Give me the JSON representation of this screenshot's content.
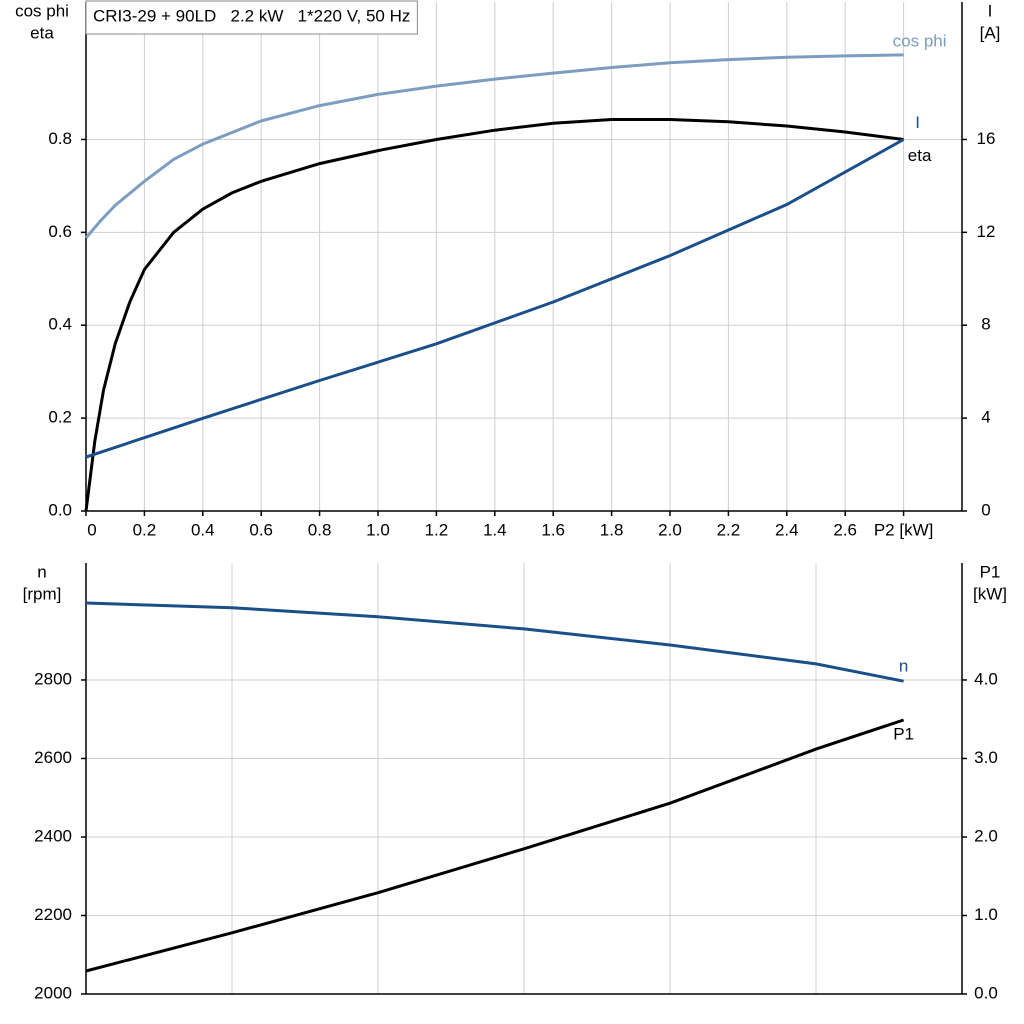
{
  "chart_data": [
    {
      "type": "line",
      "title": "CRI3-29 + 90LD   2.2 kW   1*220 V, 50 Hz",
      "y_label": [
        "cos phi",
        "eta"
      ],
      "y2_label": [
        "I",
        "[A]"
      ],
      "xlim": [
        0,
        3.0
      ],
      "ylim": [
        0,
        1.096
      ],
      "y2lim": [
        0,
        21.92
      ],
      "grid": true,
      "xticks": [
        0,
        0.2,
        0.4,
        0.6,
        0.8,
        {
          "value": 1.0,
          "label": "1.0"
        },
        1.2,
        1.4,
        1.6,
        1.8,
        {
          "value": 2.0,
          "label": "2.0"
        },
        2.2,
        2.4,
        2.6,
        {
          "value": 2.8,
          "label": "P2 [kW]"
        }
      ],
      "yticks": [
        {
          "value": 0,
          "label": "0.0"
        },
        0.2,
        0.4,
        0.6,
        0.8
      ],
      "y2ticks": [
        0,
        4,
        8,
        12,
        16
      ],
      "series": [
        {
          "name": "cos phi",
          "color": "#7c9dbf",
          "x": [
            0,
            0.05,
            0.1,
            0.2,
            0.3,
            0.4,
            0.6,
            0.8,
            1.0,
            1.2,
            1.4,
            1.6,
            1.8,
            2.0,
            2.2,
            2.4,
            2.6,
            2.8
          ],
          "values": [
            0.588,
            0.625,
            0.658,
            0.71,
            0.757,
            0.79,
            0.84,
            0.873,
            0.897,
            0.915,
            0.93,
            0.943,
            0.955,
            0.965,
            0.972,
            0.977,
            0.98,
            0.982
          ]
        },
        {
          "name": "eta",
          "color": "#000000",
          "x": [
            0,
            0.03,
            0.06,
            0.1,
            0.15,
            0.2,
            0.3,
            0.4,
            0.5,
            0.6,
            0.8,
            1.0,
            1.2,
            1.4,
            1.6,
            1.8,
            2.0,
            2.2,
            2.4,
            2.6,
            2.8
          ],
          "values": [
            0,
            0.15,
            0.26,
            0.36,
            0.45,
            0.52,
            0.6,
            0.65,
            0.685,
            0.71,
            0.748,
            0.776,
            0.8,
            0.82,
            0.835,
            0.843,
            0.843,
            0.838,
            0.829,
            0.816,
            0.8
          ]
        },
        {
          "name": "I",
          "color": "#1a4f8a",
          "axis": "y2",
          "x": [
            0,
            0.4,
            0.8,
            1.2,
            1.6,
            2.0,
            2.4,
            2.8
          ],
          "values": [
            2.32,
            3.99,
            5.62,
            7.2,
            9.0,
            11.0,
            13.2,
            16.0
          ]
        }
      ]
    },
    {
      "type": "line",
      "y_label": [
        "n",
        "[rpm]"
      ],
      "y2_label": [
        "P1",
        "[kW]"
      ],
      "xlim": [
        0,
        3.0
      ],
      "ylim": [
        2000,
        3098
      ],
      "y2lim": [
        0,
        5.49
      ],
      "grid": true,
      "xgrid": [
        0.5,
        1.0,
        1.5,
        2.0,
        2.5
      ],
      "yticks": [
        2000,
        2200,
        2400,
        2600,
        2800
      ],
      "y2ticks": [
        {
          "value": 0,
          "label": "0.0"
        },
        {
          "value": 1,
          "label": "1.0"
        },
        {
          "value": 2,
          "label": "2.0"
        },
        {
          "value": 3,
          "label": "3.0"
        },
        {
          "value": 4,
          "label": "4.0"
        }
      ],
      "series": [
        {
          "name": "n",
          "color": "#1a4f8a",
          "x": [
            0,
            0.5,
            1.0,
            1.5,
            2.0,
            2.5,
            2.8
          ],
          "values": [
            2996,
            2984,
            2961,
            2930,
            2889,
            2841,
            2797
          ]
        },
        {
          "name": "P1",
          "color": "#000000",
          "axis": "y2",
          "x": [
            0,
            0.5,
            1.0,
            1.5,
            2.0,
            2.5,
            2.8
          ],
          "values": [
            0.293,
            0.78,
            1.29,
            1.85,
            2.43,
            3.12,
            3.49
          ]
        }
      ]
    }
  ]
}
